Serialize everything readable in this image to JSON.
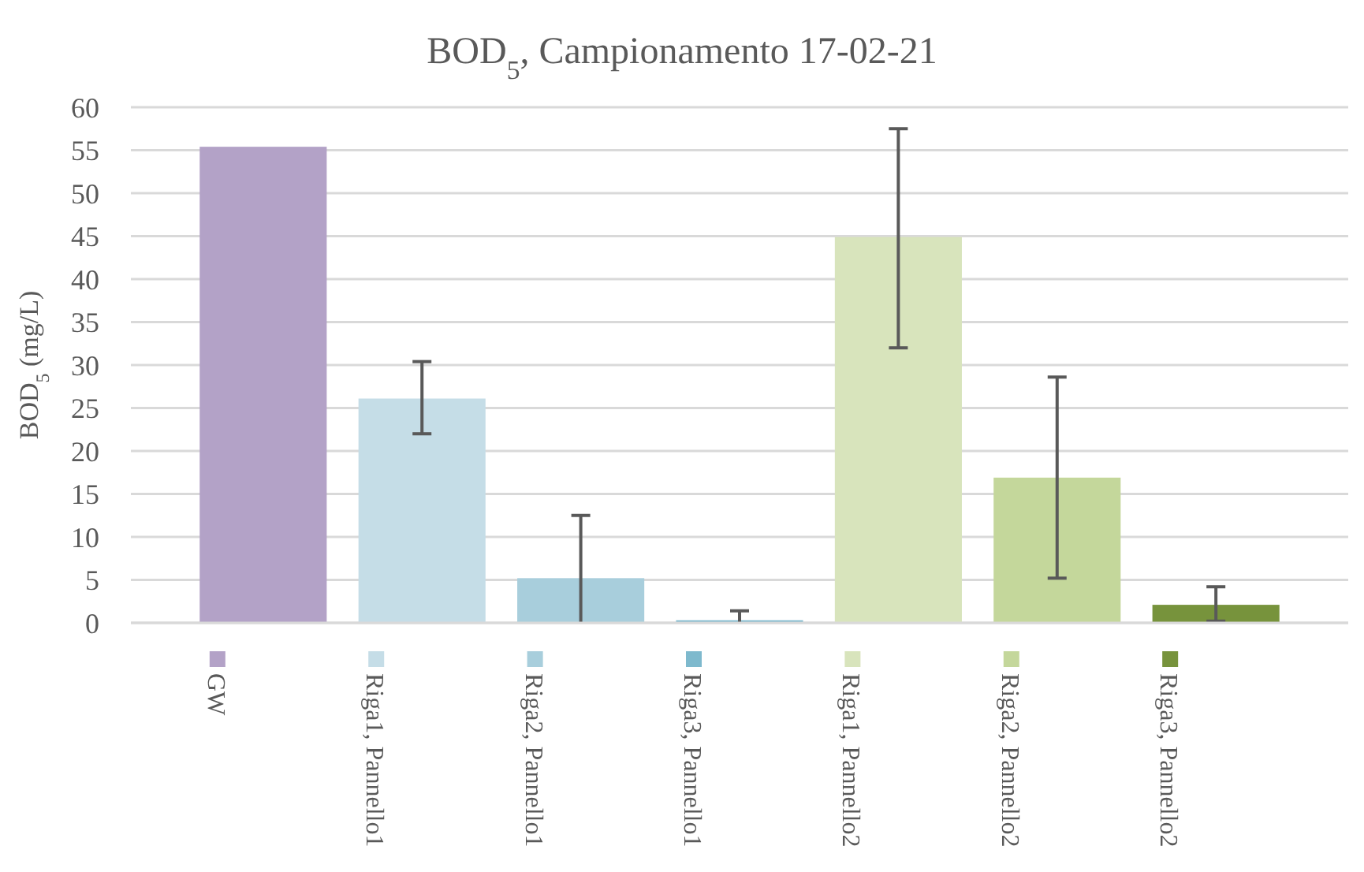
{
  "chart_data": {
    "type": "bar",
    "title": "BOD$_{5}$, Campionamento 17-02-21",
    "ylabel": "BOD$_{5}$ (mg/L)",
    "categories": [
      null
    ],
    "series": [
      {
        "name": "GW",
        "color": "#b3a2c7",
        "values": [
          55.4
        ]
      },
      {
        "name": "Riga1, Pannello1",
        "color": "#c5dde7",
        "values": [
          26.1
        ],
        "errors": [
          [
            22.0,
            30.4
          ]
        ]
      },
      {
        "name": "Riga2, Pannello1",
        "color": "#a8cedc",
        "values": [
          5.2
        ],
        "errors": [
          [
            0,
            12.5
          ]
        ]
      },
      {
        "name": "Riga3, Pannello1",
        "color": "#7eb9cd",
        "values": [
          0.3
        ],
        "errors": [
          [
            0,
            1.4
          ]
        ]
      },
      {
        "name": "Riga1, Pannello2",
        "color": "#d8e4bc",
        "values": [
          44.9
        ],
        "errors": [
          [
            32.0,
            57.5
          ]
        ]
      },
      {
        "name": "Riga2, Pannello2",
        "color": "#c4d79b",
        "values": [
          16.9
        ],
        "errors": [
          [
            5.2,
            28.6
          ]
        ]
      },
      {
        "name": "Riga3, Pannello2",
        "color": "#77933c",
        "values": [
          2.1
        ],
        "errors": [
          [
            0.2,
            4.2
          ]
        ]
      }
    ],
    "ylim": [
      0,
      60
    ],
    "yticks": [
      0,
      5,
      10,
      15,
      20,
      25,
      30,
      35,
      40,
      45,
      50,
      55,
      60
    ],
    "grid": "y",
    "legend": "bottom"
  }
}
